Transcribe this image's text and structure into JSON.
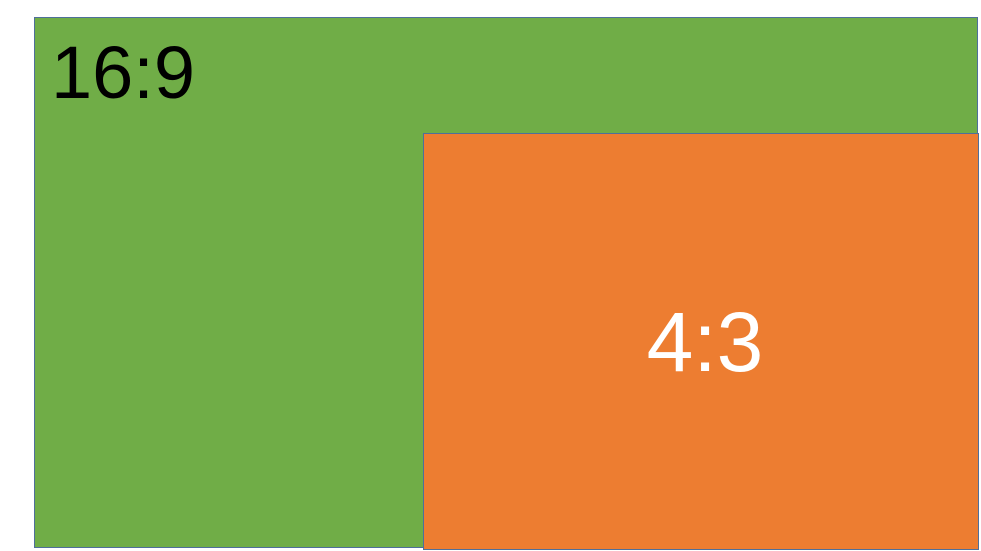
{
  "boxes": {
    "wide": {
      "label": "16:9",
      "fill": "#70ad47",
      "border": "#4f6f9a",
      "text_color": "#000000"
    },
    "standard": {
      "label": "4:3",
      "fill": "#ed7d31",
      "border": "#4f6f9a",
      "text_color": "#ffffff"
    }
  }
}
